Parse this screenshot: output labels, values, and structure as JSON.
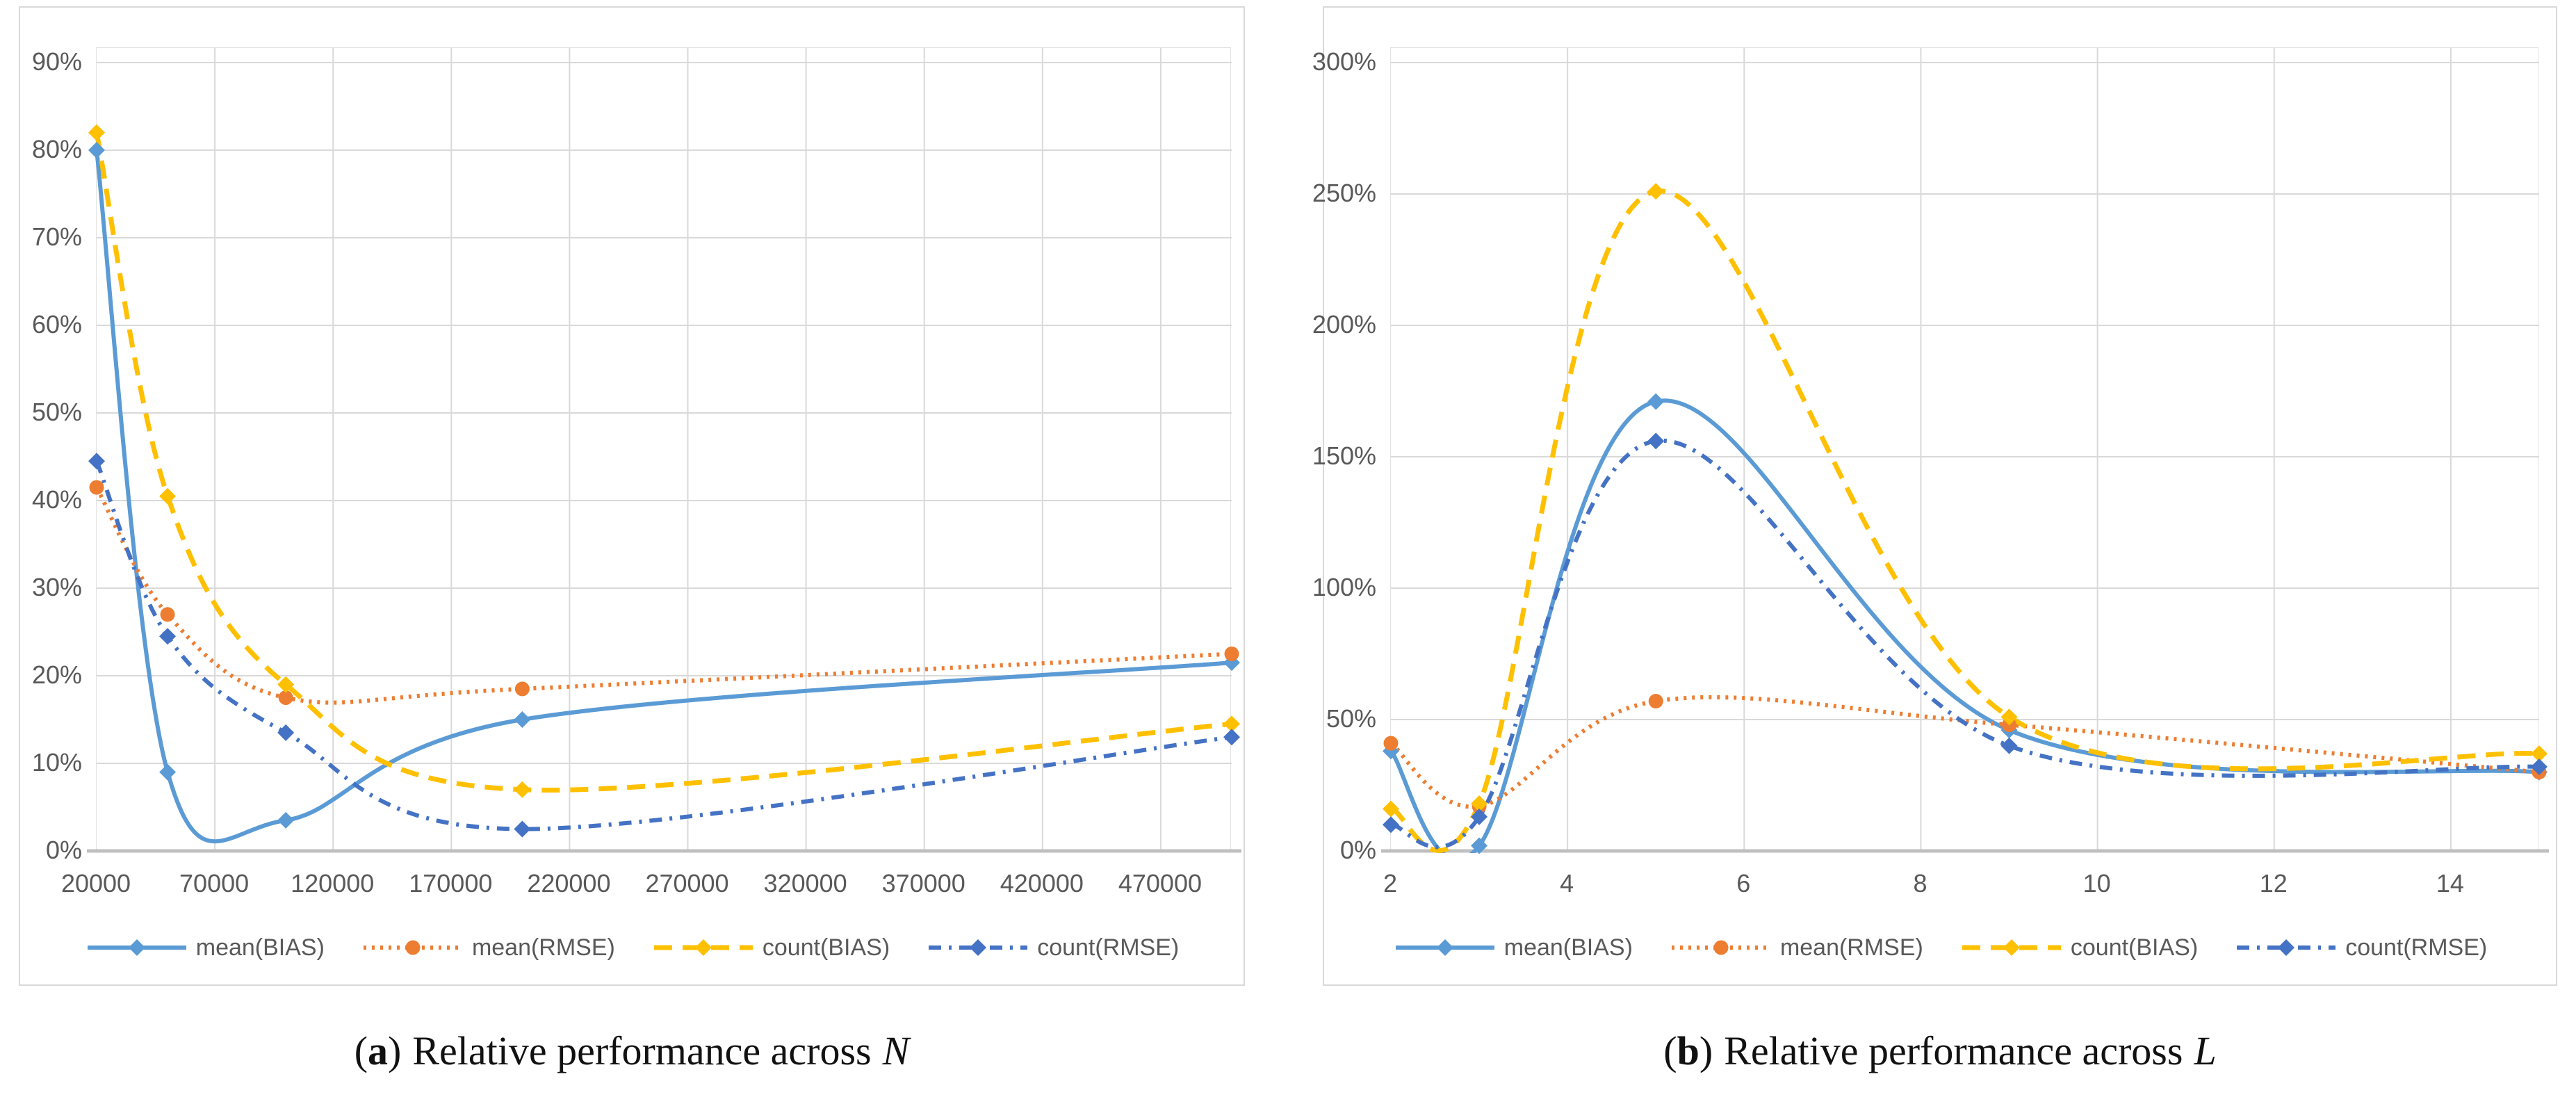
{
  "page": {
    "background": "#ffffff"
  },
  "captions": [
    {
      "open": "(",
      "letter": "a",
      "close": ")",
      "text": "Relative performance across",
      "variable": "N"
    },
    {
      "open": "(",
      "letter": "b",
      "close": ")",
      "text": "Relative performance across",
      "variable": "L"
    }
  ],
  "palette": {
    "mean_bias": "#5B9BD5",
    "mean_rmse": "#ED7D31",
    "count_bias": "#FFC000",
    "count_rmse": "#4472C4",
    "gridline": "#D9D9D9",
    "axis_line": "#BFBFBF",
    "tick_text": "#595959"
  },
  "chart_data": [
    {
      "type": "line",
      "panel": "a",
      "title": "Relative performance across N",
      "xlabel": "",
      "ylabel": "",
      "x": [
        20000,
        50000,
        100000,
        200000,
        500000
      ],
      "xlim": [
        20000,
        500000
      ],
      "ylim": [
        0,
        90
      ],
      "y_unit": "%",
      "grid": true,
      "legend_position": "bottom",
      "x_ticks": [
        "20000",
        "70000",
        "120000",
        "170000",
        "220000",
        "270000",
        "320000",
        "370000",
        "420000",
        "470000"
      ],
      "y_ticks": [
        "0%",
        "10%",
        "20%",
        "30%",
        "40%",
        "50%",
        "60%",
        "70%",
        "80%",
        "90%"
      ],
      "series": [
        {
          "name": "mean(BIAS)",
          "color": "#5B9BD5",
          "line": "solid",
          "marker": "diamond",
          "values": [
            80,
            9,
            3.5,
            15,
            21.5
          ]
        },
        {
          "name": "mean(RMSE)",
          "color": "#ED7D31",
          "line": "dotted",
          "marker": "circle",
          "values": [
            41.5,
            27,
            17.5,
            18.5,
            22.5
          ]
        },
        {
          "name": "count(BIAS)",
          "color": "#FFC000",
          "line": "dashed",
          "marker": "diamond",
          "values": [
            82,
            40.5,
            19,
            7,
            14.5
          ]
        },
        {
          "name": "count(RMSE)",
          "color": "#4472C4",
          "line": "dashdot",
          "marker": "diamond",
          "values": [
            44.5,
            24.5,
            13.5,
            2.5,
            13
          ]
        }
      ]
    },
    {
      "type": "line",
      "panel": "b",
      "title": "Relative performance across L",
      "xlabel": "",
      "ylabel": "",
      "x": [
        2,
        3,
        5,
        9,
        15
      ],
      "xlim": [
        2,
        15
      ],
      "ylim": [
        0,
        300
      ],
      "y_unit": "%",
      "grid": true,
      "legend_position": "bottom",
      "x_ticks": [
        "2",
        "4",
        "6",
        "8",
        "10",
        "12",
        "14"
      ],
      "y_ticks": [
        "0%",
        "50%",
        "100%",
        "150%",
        "200%",
        "250%",
        "300%"
      ],
      "series": [
        {
          "name": "mean(BIAS)",
          "color": "#5B9BD5",
          "line": "solid",
          "marker": "diamond",
          "values": [
            38,
            2,
            171,
            46,
            30
          ]
        },
        {
          "name": "mean(RMSE)",
          "color": "#ED7D31",
          "line": "dotted",
          "marker": "circle",
          "values": [
            41,
            17,
            57,
            48,
            30
          ]
        },
        {
          "name": "count(BIAS)",
          "color": "#FFC000",
          "line": "dashed",
          "marker": "diamond",
          "values": [
            16,
            18,
            251,
            51,
            37
          ]
        },
        {
          "name": "count(RMSE)",
          "color": "#4472C4",
          "line": "dashdot",
          "marker": "diamond",
          "values": [
            10,
            13,
            156,
            40,
            32
          ]
        }
      ]
    }
  ]
}
